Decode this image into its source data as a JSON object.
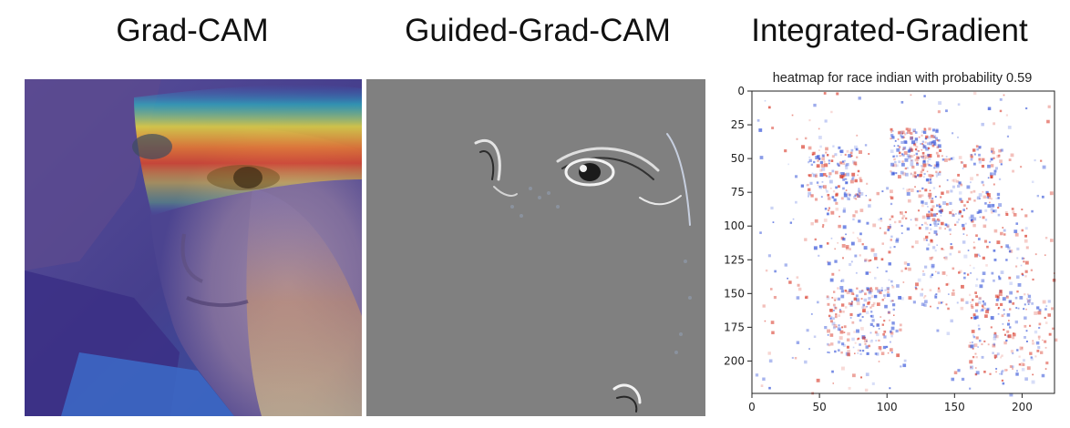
{
  "panels": {
    "gradcam_title": "Grad-CAM",
    "guided_title": "Guided-Grad-CAM",
    "integrated_title": "Integrated-Gradient"
  },
  "heatmap": {
    "title": "heatmap for race indian with probability 0.59",
    "xticks": [
      0,
      50,
      100,
      150,
      200
    ],
    "yticks": [
      0,
      25,
      50,
      75,
      100,
      125,
      150,
      175,
      200
    ],
    "xlim": [
      0,
      224
    ],
    "ylim": [
      224,
      0
    ]
  },
  "colors": {
    "positive": "#d7301f",
    "negative": "#2b4bd6",
    "guided_bg": "#808080"
  }
}
